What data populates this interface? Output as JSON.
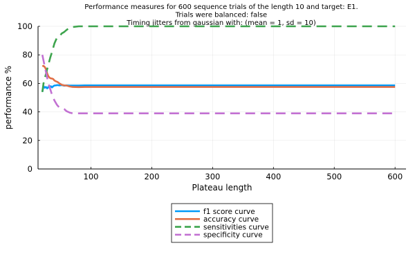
{
  "chart_data": {
    "type": "line",
    "title": [
      "Performance measures for 600 sequence trials of the length 10 and target: E1.",
      "Trials were balanced: false",
      "Timing jitters from gaussian with: (mean = 1, sd = 10)"
    ],
    "xlabel": "Plateau length",
    "ylabel": "performance %",
    "xlim": [
      13,
      618
    ],
    "ylim": [
      0,
      100
    ],
    "xticks": [
      100,
      200,
      300,
      400,
      500,
      600
    ],
    "yticks": [
      0,
      20,
      40,
      60,
      80,
      100
    ],
    "grid": true,
    "legend_position": "bottom",
    "series": [
      {
        "name": "f1 score curve",
        "color": "#009af9",
        "dash": "solid",
        "x": [
          20,
          22,
          24,
          26,
          28,
          30,
          32,
          34,
          36,
          38,
          40,
          42,
          45,
          48,
          52,
          56,
          60,
          65,
          70,
          80,
          90,
          100,
          150,
          200,
          300,
          400,
          500,
          600
        ],
        "y": [
          54,
          58,
          57,
          57.5,
          56.5,
          57.5,
          57,
          58,
          57.2,
          58,
          58.5,
          58.6,
          58.8,
          58.6,
          58.8,
          58.4,
          58.6,
          58.5,
          58.5,
          58.5,
          58.6,
          58.6,
          58.6,
          58.6,
          58.6,
          58.6,
          58.6,
          58.6
        ]
      },
      {
        "name": "accuracy curve",
        "color": "#e26f46",
        "dash": "solid",
        "x": [
          20,
          22,
          24,
          26,
          28,
          30,
          32,
          34,
          36,
          38,
          40,
          42,
          45,
          48,
          52,
          56,
          60,
          65,
          70,
          80,
          90,
          100,
          150,
          200,
          300,
          400,
          500,
          600
        ],
        "y": [
          72,
          72.3,
          71.5,
          70,
          67,
          65,
          64,
          63.5,
          63.4,
          63,
          62,
          61.5,
          61,
          60,
          59,
          58.6,
          58.5,
          57.8,
          57.5,
          57.4,
          57.5,
          57.5,
          57.5,
          57.5,
          57.5,
          57.5,
          57.5,
          57.5
        ]
      },
      {
        "name": "sensitivities curve",
        "color": "#3da44d",
        "dash": "dashed",
        "x": [
          20,
          22,
          25,
          28,
          30,
          33,
          36,
          40,
          44,
          48,
          52,
          56,
          60,
          65,
          70,
          80,
          100,
          200,
          300,
          400,
          500,
          600
        ],
        "y": [
          54,
          60,
          65,
          70,
          73,
          78,
          82,
          88,
          92,
          93,
          95,
          96,
          97.5,
          99,
          99.5,
          100,
          100,
          100,
          100,
          100,
          100,
          100
        ]
      },
      {
        "name": "specificity curve",
        "color": "#c271d2",
        "dash": "dashed",
        "x": [
          20,
          22,
          24,
          26,
          28,
          30,
          33,
          36,
          40,
          44,
          48,
          52,
          56,
          60,
          65,
          70,
          80,
          100,
          200,
          300,
          400,
          500,
          600
        ],
        "y": [
          80,
          76,
          72,
          68,
          64,
          60,
          56,
          52,
          48,
          45,
          43,
          42.5,
          42,
          40.5,
          39.5,
          39,
          39,
          39,
          39,
          39,
          39,
          39,
          39
        ]
      }
    ]
  }
}
